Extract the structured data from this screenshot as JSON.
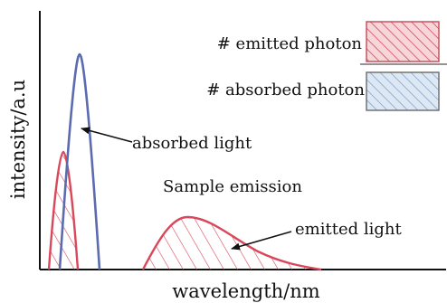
{
  "axes": {
    "ylabel": "intensity/a.u",
    "xlabel": "wavelength/nm"
  },
  "legend": {
    "numerator_label": "# emitted photon",
    "denominator_label": "# absorbed photon"
  },
  "annotations": {
    "absorbed": "absorbed light",
    "sample": "Sample emission",
    "emitted": "emitted light"
  },
  "colors": {
    "absorbed": "#5b6bb0",
    "emitted": "#d9475a",
    "emitted_fill": "#f2c6cb",
    "absorbed_fill": "#c9dbec"
  }
}
